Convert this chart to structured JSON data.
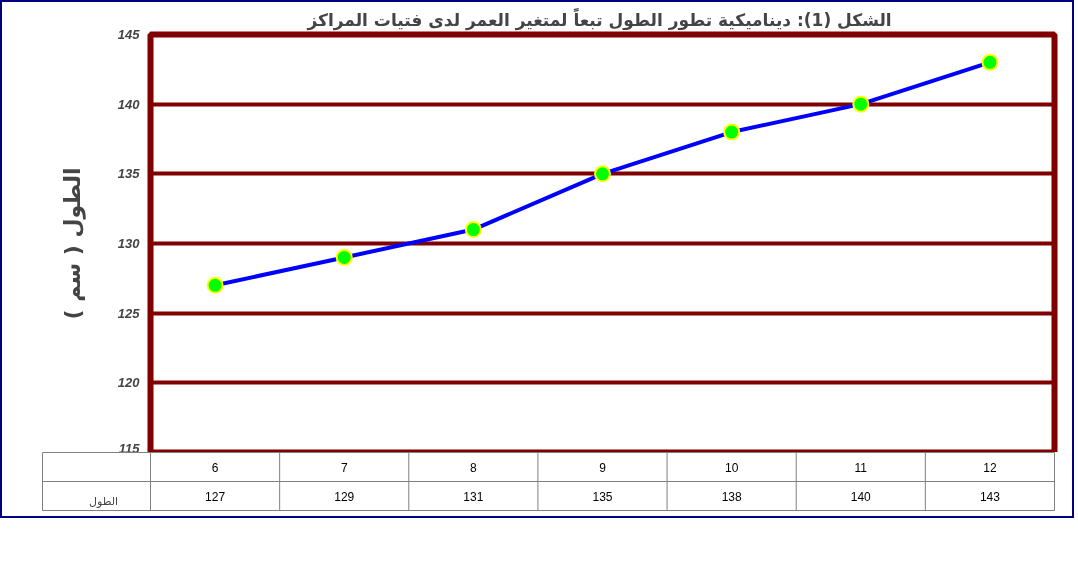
{
  "chart_data": {
    "type": "line",
    "title": "الشكل (1):  ديناميكية تطور الطول تبعاً لمتغير العمر لدى فتيات المراكز",
    "ylabel": "الطول ( سم )",
    "categories": [
      "6",
      "7",
      "8",
      "9",
      "10",
      "11",
      "12"
    ],
    "series": [
      {
        "name": "الطول",
        "color": "#0000ff",
        "values": [
          127,
          129,
          131,
          135,
          138,
          140,
          143
        ]
      }
    ],
    "ylim": [
      115,
      145
    ],
    "yticks": [
      115,
      120,
      125,
      130,
      135,
      140,
      145
    ],
    "grid": "y",
    "legend": "bottom left",
    "marker": "circle",
    "line_style": "solid",
    "data_labels": true
  }
}
